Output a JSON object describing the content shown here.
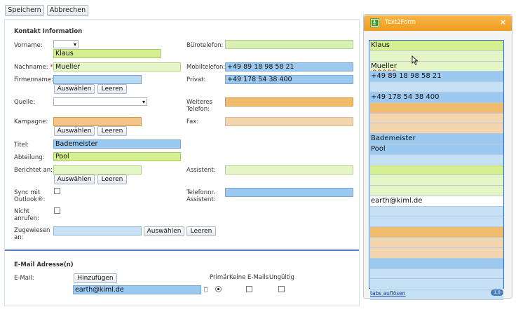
{
  "toolbar": {
    "save_label": "Speichern",
    "cancel_label": "Abbrechen"
  },
  "contact_section": {
    "title": "Kontakt Information",
    "firstname_label": "Vorname:",
    "firstname_value": "Klaus",
    "lastname_label": "Nachname:",
    "required_mark": "*",
    "lastname_value": "Mueller",
    "company_label": "Firmenname:",
    "select_label": "Auswählen",
    "clear_label": "Leeren",
    "source_label": "Quelle:",
    "campaign_label": "Kampagne:",
    "title_label": "Titel:",
    "title_value": "Bademeister",
    "department_label": "Abteilung:",
    "department_value": "Pool",
    "reports_to_label": "Berichtet an:",
    "sync_label": "Sync mit Outlook®:",
    "no_call_label": "Nicht anrufen:",
    "assigned_label": "Zugewiesen an:",
    "office_phone_label": "Bürotelefon:",
    "mobile_label": "Mobiltelefon:",
    "mobile_value": "+49 89 18 98 58 21",
    "private_label": "Privat:",
    "private_value": "+49 178 54 38 400",
    "other_phone_label": "Weiteres Telefon:",
    "fax_label": "Fax:",
    "assistant_label": "Assistent:",
    "assistant_phone_label": "Telefonnr. Assistent:"
  },
  "email_section": {
    "title": "E-Mail Adresse(n)",
    "email_label": "E-Mail:",
    "add_label": "Hinzufügen",
    "email_value": "earth@kiml.de",
    "primary_label": "Primär",
    "no_emails_label": "Keine E-Mails",
    "invalid_label": "Ungültig"
  },
  "panel": {
    "title": "Text2Form",
    "close_symbol": "×",
    "strips": [
      "Klaus",
      "",
      "Mueller",
      "+49 89 18 98 58 21",
      "",
      "+49 178 54 38 400",
      "",
      "",
      "",
      "Bademeister",
      "Pool",
      "",
      "",
      "",
      "",
      "earth@kiml.de",
      "",
      "",
      "",
      "",
      "",
      "",
      "",
      "",
      ""
    ],
    "strip_colors": [
      "#d4ef8f",
      "#e4f6c6",
      "#e4f6c6",
      "#9cc9f0",
      "#c6e0f6",
      "#9cc9f0",
      "#f0bb6a",
      "#f3d6b0",
      "#f3d6b0",
      "#9cc9f0",
      "#9cc9f0",
      "#c6e0f6",
      "#d4ef8f",
      "#e4f6c6",
      "#e4f6c6",
      "#ffffff",
      "#c6e0f6",
      "#c6e0f6",
      "#f0bb6a",
      "#f3d6b0",
      "#f3d6b0",
      "#9cc9f0",
      "#c6e0f6",
      "#c6e0f6",
      "#c6e0f6"
    ],
    "footer_link": "tabs auflösen",
    "footer_badge": "1.0"
  },
  "colors": {
    "accent_orange": "#f5a623",
    "panel_border": "#3b6fd8",
    "divider": "#4a7fc0"
  }
}
